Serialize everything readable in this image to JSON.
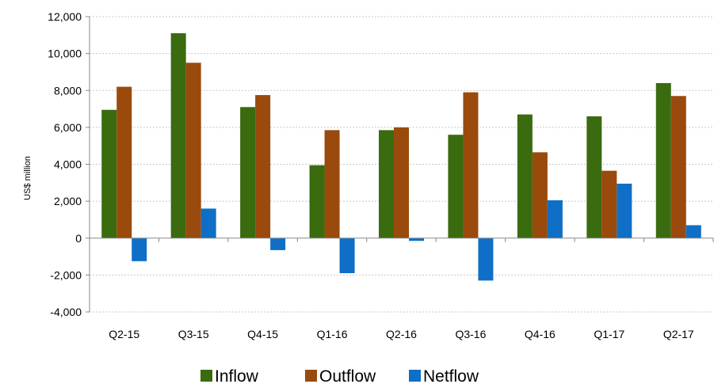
{
  "chart_data": {
    "type": "bar",
    "title": "",
    "xlabel": "",
    "ylabel": "US$ million",
    "ylim": [
      -4000,
      12000
    ],
    "yticks": [
      -4000,
      -2000,
      0,
      2000,
      4000,
      6000,
      8000,
      10000,
      12000
    ],
    "ytick_labels": [
      "-4,000",
      "-2,000",
      "0",
      "2,000",
      "4,000",
      "6,000",
      "8,000",
      "10,000",
      "12,000"
    ],
    "grid": true,
    "legend_position": "bottom",
    "categories": [
      "Q2-15",
      "Q3-15",
      "Q4-15",
      "Q1-16",
      "Q2-16",
      "Q3-16",
      "Q4-16",
      "Q1-17",
      "Q2-17"
    ],
    "series": [
      {
        "name": "Inflow",
        "color": "#3a6b0e",
        "values": [
          6950,
          11100,
          7100,
          3950,
          5850,
          5600,
          6700,
          6600,
          8400
        ]
      },
      {
        "name": "Outflow",
        "color": "#9a4a0c",
        "values": [
          8200,
          9500,
          7750,
          5850,
          6000,
          7900,
          4650,
          3650,
          7700
        ]
      },
      {
        "name": "Netflow",
        "color": "#0f6fc6",
        "values": [
          -1250,
          1600,
          -650,
          -1900,
          -150,
          -2300,
          2050,
          2950,
          700
        ]
      }
    ]
  }
}
